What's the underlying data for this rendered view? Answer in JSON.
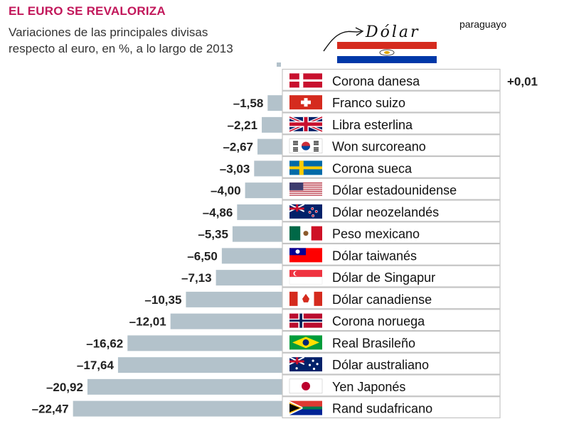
{
  "header": {
    "title": "EL EURO SE REVALORIZA",
    "subtitle_line1": "Variaciones de las principales divisas",
    "subtitle_line2": "respecto al euro, en %, a lo largo de 2013"
  },
  "annotation": {
    "handwritten": "Dólar",
    "label": "paraguayo",
    "flag": "paraguay-flag"
  },
  "colors": {
    "title": "#c2185b",
    "bar": "#b3c2cb",
    "row_border": "#c4c4c4"
  },
  "chart_data": {
    "type": "bar",
    "orientation": "horizontal",
    "title": "EL EURO SE REVALORIZA",
    "subtitle": "Variaciones de las principales divisas respecto al euro, en %, a lo largo de 2013",
    "categories": [
      "Corona danesa",
      "Franco suizo",
      "Libra esterlina",
      "Won surcoreano",
      "Corona sueca",
      "Dólar estadounidense",
      "Dólar neozelandés",
      "Peso mexicano",
      "Dólar taiwanés",
      "Dólar de Singapur",
      "Dólar canadiense",
      "Corona noruega",
      "Real Brasileño",
      "Dólar australiano",
      "Yen Japonés",
      "Rand sudafricano"
    ],
    "values": [
      0.01,
      -1.58,
      -2.21,
      -2.67,
      -3.03,
      -4.0,
      -4.86,
      -5.35,
      -6.5,
      -7.13,
      -10.35,
      -12.01,
      -16.62,
      -17.64,
      -20.92,
      -22.47
    ],
    "value_labels": [
      "+0,01",
      "–1,58",
      "–2,21",
      "–2,67",
      "–3,03",
      "–4,00",
      "–4,86",
      "–5,35",
      "–6,50",
      "–7,13",
      "–10,35",
      "–12,01",
      "–16,62",
      "–17,64",
      "–20,92",
      "–22,47"
    ],
    "flags": [
      "denmark-flag",
      "switzerland-flag",
      "uk-flag",
      "south-korea-flag",
      "sweden-flag",
      "usa-flag",
      "new-zealand-flag",
      "mexico-flag",
      "taiwan-flag",
      "singapore-flag",
      "canada-flag",
      "norway-flag",
      "brazil-flag",
      "australia-flag",
      "japan-flag",
      "south-africa-flag"
    ],
    "xlabel": "",
    "ylabel": "",
    "grid": false
  }
}
